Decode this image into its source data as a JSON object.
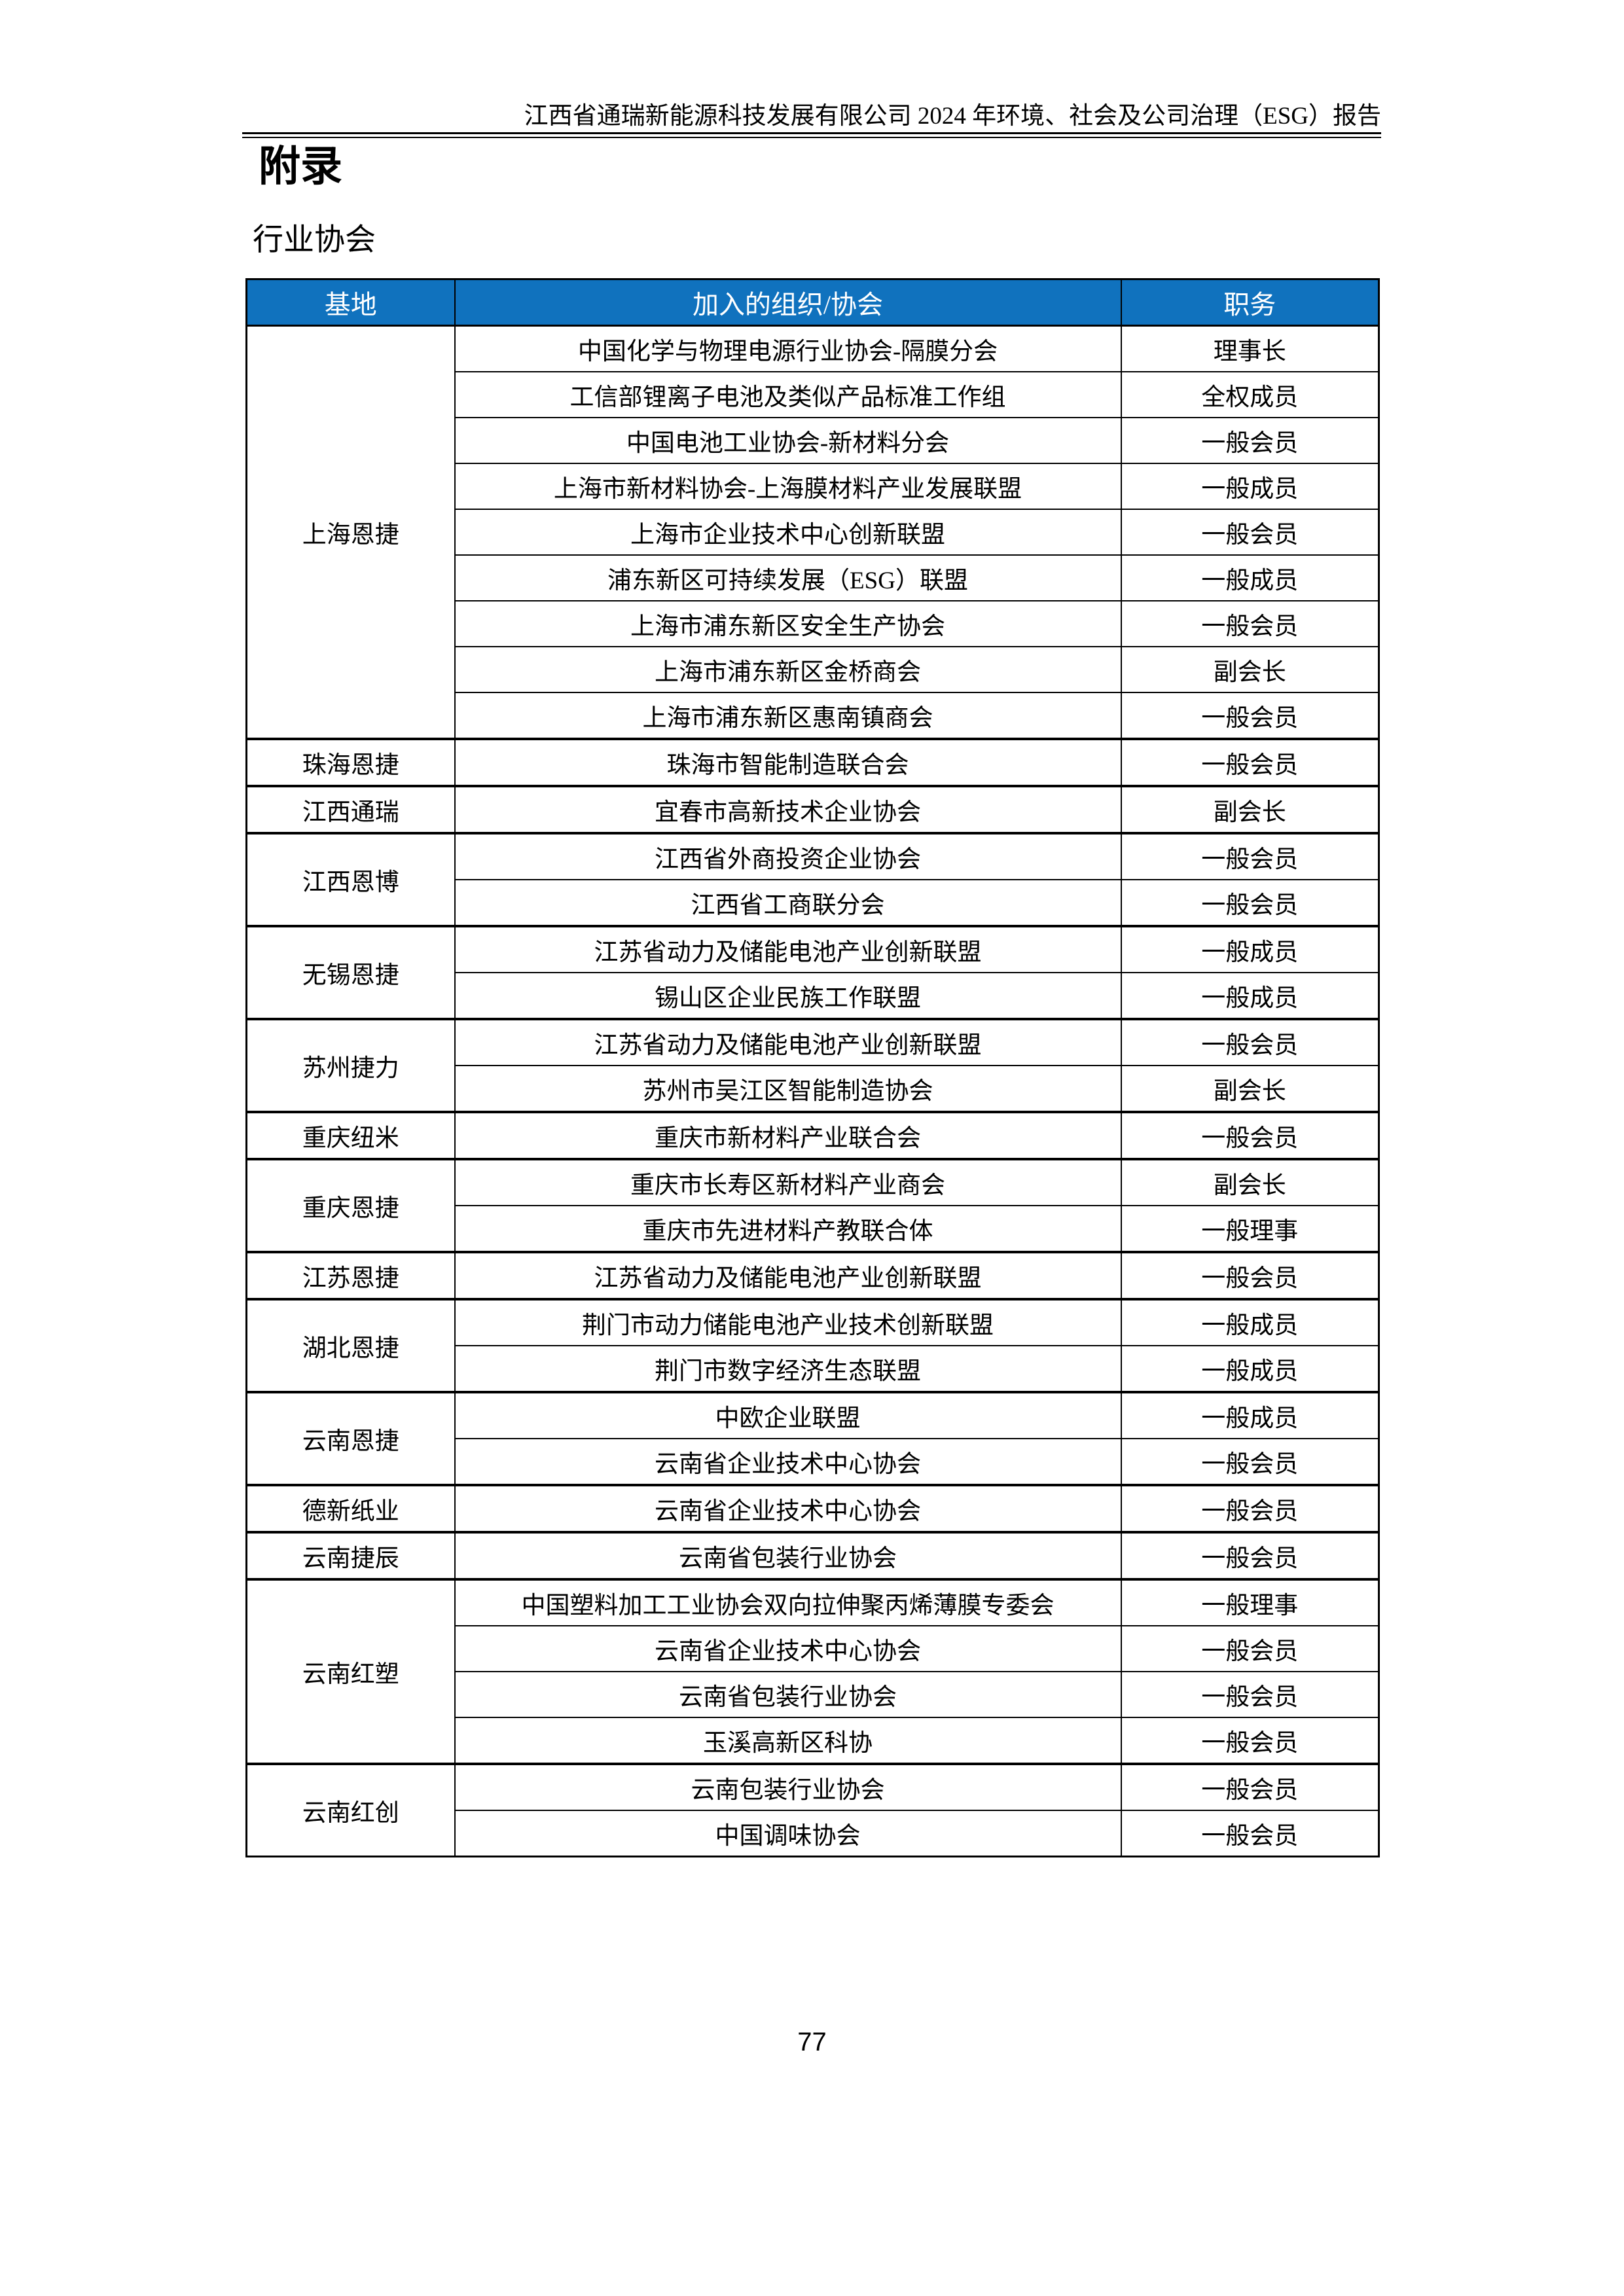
{
  "header": {
    "title": "江西省通瑞新能源科技发展有限公司 2024 年环境、社会及公司治理（ESG）报告"
  },
  "titles": {
    "appendix": "附录",
    "section": "行业协会"
  },
  "colors": {
    "header_bg": "#1072BE",
    "header_text": "#ffffff",
    "border": "#000000"
  },
  "table": {
    "columns": [
      "基地",
      "加入的组织/协会",
      "职务"
    ],
    "groups": [
      {
        "base": "上海恩捷",
        "rows": [
          [
            "中国化学与物理电源行业协会-隔膜分会",
            "理事长"
          ],
          [
            "工信部锂离子电池及类似产品标准工作组",
            "全权成员"
          ],
          [
            "中国电池工业协会-新材料分会",
            "一般会员"
          ],
          [
            "上海市新材料协会-上海膜材料产业发展联盟",
            "一般成员"
          ],
          [
            "上海市企业技术中心创新联盟",
            "一般会员"
          ],
          [
            "浦东新区可持续发展（ESG）联盟",
            "一般成员"
          ],
          [
            "上海市浦东新区安全生产协会",
            "一般会员"
          ],
          [
            "上海市浦东新区金桥商会",
            "副会长"
          ],
          [
            "上海市浦东新区惠南镇商会",
            "一般会员"
          ]
        ]
      },
      {
        "base": "珠海恩捷",
        "rows": [
          [
            "珠海市智能制造联合会",
            "一般会员"
          ]
        ]
      },
      {
        "base": "江西通瑞",
        "rows": [
          [
            "宜春市高新技术企业协会",
            "副会长"
          ]
        ]
      },
      {
        "base": "江西恩博",
        "rows": [
          [
            "江西省外商投资企业协会",
            "一般会员"
          ],
          [
            "江西省工商联分会",
            "一般会员"
          ]
        ]
      },
      {
        "base": "无锡恩捷",
        "rows": [
          [
            "江苏省动力及储能电池产业创新联盟",
            "一般成员"
          ],
          [
            "锡山区企业民族工作联盟",
            "一般成员"
          ]
        ]
      },
      {
        "base": "苏州捷力",
        "rows": [
          [
            "江苏省动力及储能电池产业创新联盟",
            "一般会员"
          ],
          [
            "苏州市吴江区智能制造协会",
            "副会长"
          ]
        ]
      },
      {
        "base": "重庆纽米",
        "rows": [
          [
            "重庆市新材料产业联合会",
            "一般会员"
          ]
        ]
      },
      {
        "base": "重庆恩捷",
        "rows": [
          [
            "重庆市长寿区新材料产业商会",
            "副会长"
          ],
          [
            "重庆市先进材料产教联合体",
            "一般理事"
          ]
        ]
      },
      {
        "base": "江苏恩捷",
        "rows": [
          [
            "江苏省动力及储能电池产业创新联盟",
            "一般会员"
          ]
        ]
      },
      {
        "base": "湖北恩捷",
        "rows": [
          [
            "荆门市动力储能电池产业技术创新联盟",
            "一般成员"
          ],
          [
            "荆门市数字经济生态联盟",
            "一般成员"
          ]
        ]
      },
      {
        "base": "云南恩捷",
        "rows": [
          [
            "中欧企业联盟",
            "一般成员"
          ],
          [
            "云南省企业技术中心协会",
            "一般会员"
          ]
        ]
      },
      {
        "base": "德新纸业",
        "rows": [
          [
            "云南省企业技术中心协会",
            "一般会员"
          ]
        ]
      },
      {
        "base": "云南捷辰",
        "rows": [
          [
            "云南省包装行业协会",
            "一般会员"
          ]
        ]
      },
      {
        "base": "云南红塑",
        "rows": [
          [
            "中国塑料加工工业协会双向拉伸聚丙烯薄膜专委会",
            "一般理事"
          ],
          [
            "云南省企业技术中心协会",
            "一般会员"
          ],
          [
            "云南省包装行业协会",
            "一般会员"
          ],
          [
            "玉溪高新区科协",
            "一般会员"
          ]
        ]
      },
      {
        "base": "云南红创",
        "rows": [
          [
            "云南包装行业协会",
            "一般会员"
          ],
          [
            "中国调味协会",
            "一般会员"
          ]
        ]
      }
    ]
  },
  "footer": {
    "page_number": "77"
  }
}
